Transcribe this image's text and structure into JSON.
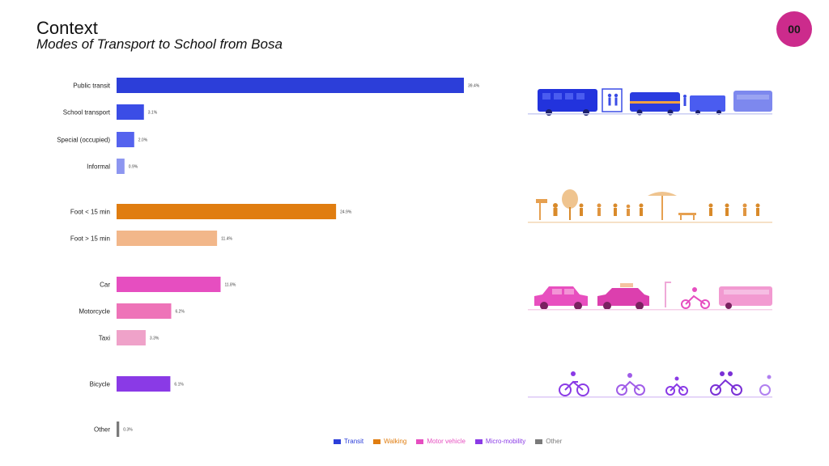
{
  "header": {
    "title": "Context",
    "subtitle": "Modes of Transport to School from Bosa",
    "badge": "00"
  },
  "colors": {
    "transit": "#2c3ed9",
    "walking": "#e07d10",
    "motor_vehicle": "#e64ec0",
    "micro_mobility": "#8a3ae6",
    "other": "#7a7a7a",
    "badge_bg": "#cc2b8c",
    "badge_text": "#1a1a1a"
  },
  "chart_data": {
    "type": "bar",
    "orientation": "horizontal",
    "title": "Modes of Transport to School from Bosa",
    "xlim": [
      0,
      39.4
    ],
    "grid": false,
    "legend_position": "bottom",
    "categories": [
      {
        "label": "Public transit",
        "value": 39.4,
        "value_label": "39.4%",
        "group": "Transit",
        "color": "#2c3ed9"
      },
      {
        "label": "School transport",
        "value": 3.1,
        "value_label": "3.1%",
        "group": "Transit",
        "color": "#3b4de6"
      },
      {
        "label": "Special (occupied)",
        "value": 2.0,
        "value_label": "2.0%",
        "group": "Transit",
        "color": "#5563ee"
      },
      {
        "label": "Informal",
        "value": 0.9,
        "value_label": "0.9%",
        "group": "Transit",
        "color": "#8d96f0"
      },
      {
        "label": "Foot < 15 min",
        "value": 24.9,
        "value_label": "24.9%",
        "group": "Walking",
        "color": "#e07d10"
      },
      {
        "label": "Foot > 15 min",
        "value": 11.4,
        "value_label": "11.4%",
        "group": "Walking",
        "color": "#f2b78a"
      },
      {
        "label": "Car",
        "value": 11.8,
        "value_label": "11.8%",
        "group": "Motor vehicle",
        "color": "#e64ec0"
      },
      {
        "label": "Motorcycle",
        "value": 6.2,
        "value_label": "6.2%",
        "group": "Motor vehicle",
        "color": "#ee73b8"
      },
      {
        "label": "Taxi",
        "value": 3.3,
        "value_label": "3.3%",
        "group": "Motor vehicle",
        "color": "#efa2c9"
      },
      {
        "label": "Bicycle",
        "value": 6.1,
        "value_label": "6.1%",
        "group": "Micro-mobility",
        "color": "#8a3ae6"
      },
      {
        "label": "Other",
        "value": 0.3,
        "value_label": "0.3%",
        "group": "Other",
        "color": "#7a7a7a"
      }
    ],
    "legend": [
      {
        "label": "Transit",
        "color": "#2c3ed9"
      },
      {
        "label": "Walking",
        "color": "#e07d10"
      },
      {
        "label": "Motor vehicle",
        "color": "#e64ec0"
      },
      {
        "label": "Micro-mobility",
        "color": "#8a3ae6"
      },
      {
        "label": "Other",
        "color": "#7a7a7a"
      }
    ]
  }
}
